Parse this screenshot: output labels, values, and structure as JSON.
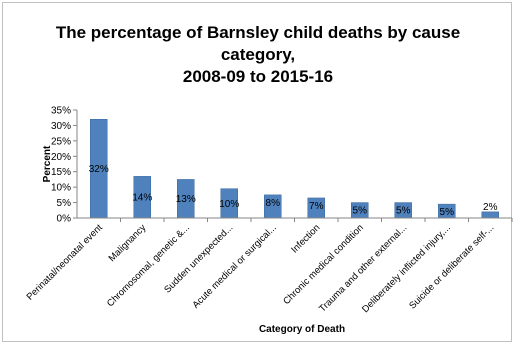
{
  "chart_data": {
    "type": "bar",
    "title_lines": [
      "The percentage of Barnsley child deaths by cause",
      "category,",
      "2008-09 to 2015-16"
    ],
    "xlabel": "Category of Death",
    "ylabel": "Percent",
    "ylim": [
      0,
      35
    ],
    "yticks": [
      "0%",
      "5%",
      "10%",
      "15%",
      "20%",
      "25%",
      "30%",
      "35%"
    ],
    "yticks_values": [
      0,
      5,
      10,
      15,
      20,
      25,
      30,
      35
    ],
    "categories": [
      "Perinatal/neonatal event",
      "Malignancy",
      "Chromosomal, genetic &...",
      "Sudden unexpected...",
      "Acute medical or surgical...",
      "Infection",
      "Chronic medical condition",
      "Trauma and other external...",
      "Deliberately inflicted injury,...",
      "Suicide or deliberate self-..."
    ],
    "values": [
      32,
      13.5,
      12.5,
      9.5,
      7.5,
      6.5,
      5,
      5,
      4.5,
      2
    ],
    "data_labels": [
      "32%",
      "14%",
      "13%",
      "10%",
      "8%",
      "7%",
      "5%",
      "5%",
      "5%",
      "2%"
    ],
    "bar_color": "#4f81bd",
    "grid": false,
    "legend": "none"
  }
}
